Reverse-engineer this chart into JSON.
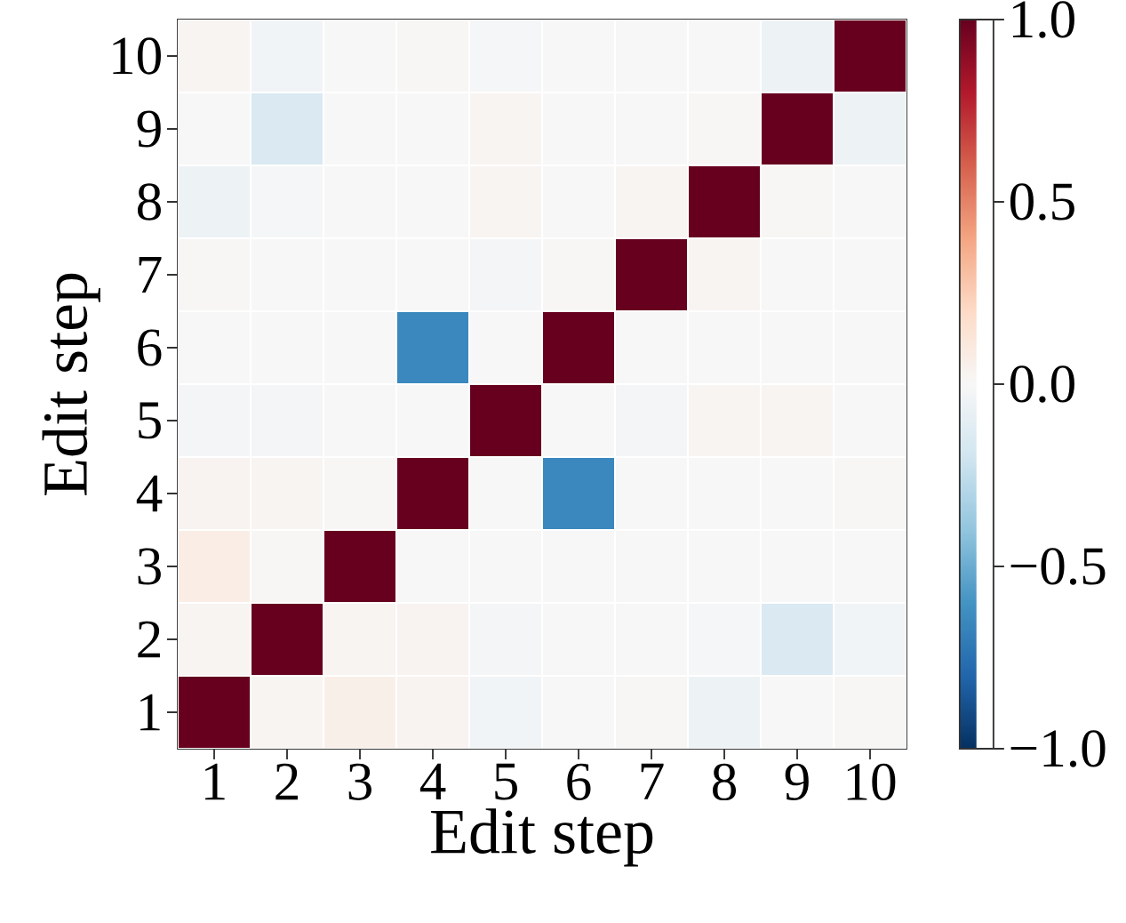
{
  "chart_data": {
    "type": "heatmap",
    "xlabel": "Edit step",
    "ylabel": "Edit step",
    "categories": [
      "1",
      "2",
      "3",
      "4",
      "5",
      "6",
      "7",
      "8",
      "9",
      "10"
    ],
    "y_categories": [
      "10",
      "9",
      "8",
      "7",
      "6",
      "5",
      "4",
      "3",
      "2",
      "1"
    ],
    "cells": [
      [
        0.02,
        -0.03,
        0.0,
        0.01,
        -0.01,
        0.0,
        0.0,
        0.0,
        -0.05,
        1.0
      ],
      [
        0.0,
        -0.15,
        0.0,
        0.0,
        0.02,
        0.0,
        0.0,
        0.01,
        1.0,
        -0.05
      ],
      [
        -0.05,
        -0.01,
        0.0,
        0.0,
        0.02,
        0.0,
        0.02,
        1.0,
        0.01,
        0.0
      ],
      [
        0.01,
        0.0,
        0.0,
        0.0,
        -0.02,
        0.01,
        1.0,
        0.02,
        0.0,
        0.0
      ],
      [
        0.0,
        0.0,
        0.0,
        -0.65,
        0.0,
        1.0,
        0.0,
        0.0,
        0.0,
        0.0
      ],
      [
        -0.02,
        -0.02,
        0.0,
        0.0,
        1.0,
        0.0,
        -0.02,
        0.02,
        0.02,
        0.0
      ],
      [
        0.03,
        0.02,
        0.01,
        1.0,
        0.0,
        -0.65,
        0.0,
        0.0,
        0.0,
        0.01
      ],
      [
        0.07,
        0.01,
        1.0,
        0.0,
        0.0,
        0.0,
        0.0,
        0.0,
        0.0,
        0.0
      ],
      [
        0.02,
        1.0,
        0.02,
        0.03,
        -0.02,
        0.0,
        0.0,
        -0.01,
        -0.15,
        -0.03
      ],
      [
        1.0,
        0.02,
        0.06,
        0.03,
        -0.03,
        0.0,
        0.01,
        -0.05,
        0.0,
        0.01
      ]
    ],
    "clim": [
      -1.0,
      1.0
    ],
    "cticks": [
      {
        "value": -1.0,
        "label": "−1.0"
      },
      {
        "value": -0.5,
        "label": "−0.5"
      },
      {
        "value": 0.0,
        "label": "0.0"
      },
      {
        "value": 0.5,
        "label": "0.5"
      },
      {
        "value": 1.0,
        "label": "1.0"
      }
    ]
  }
}
